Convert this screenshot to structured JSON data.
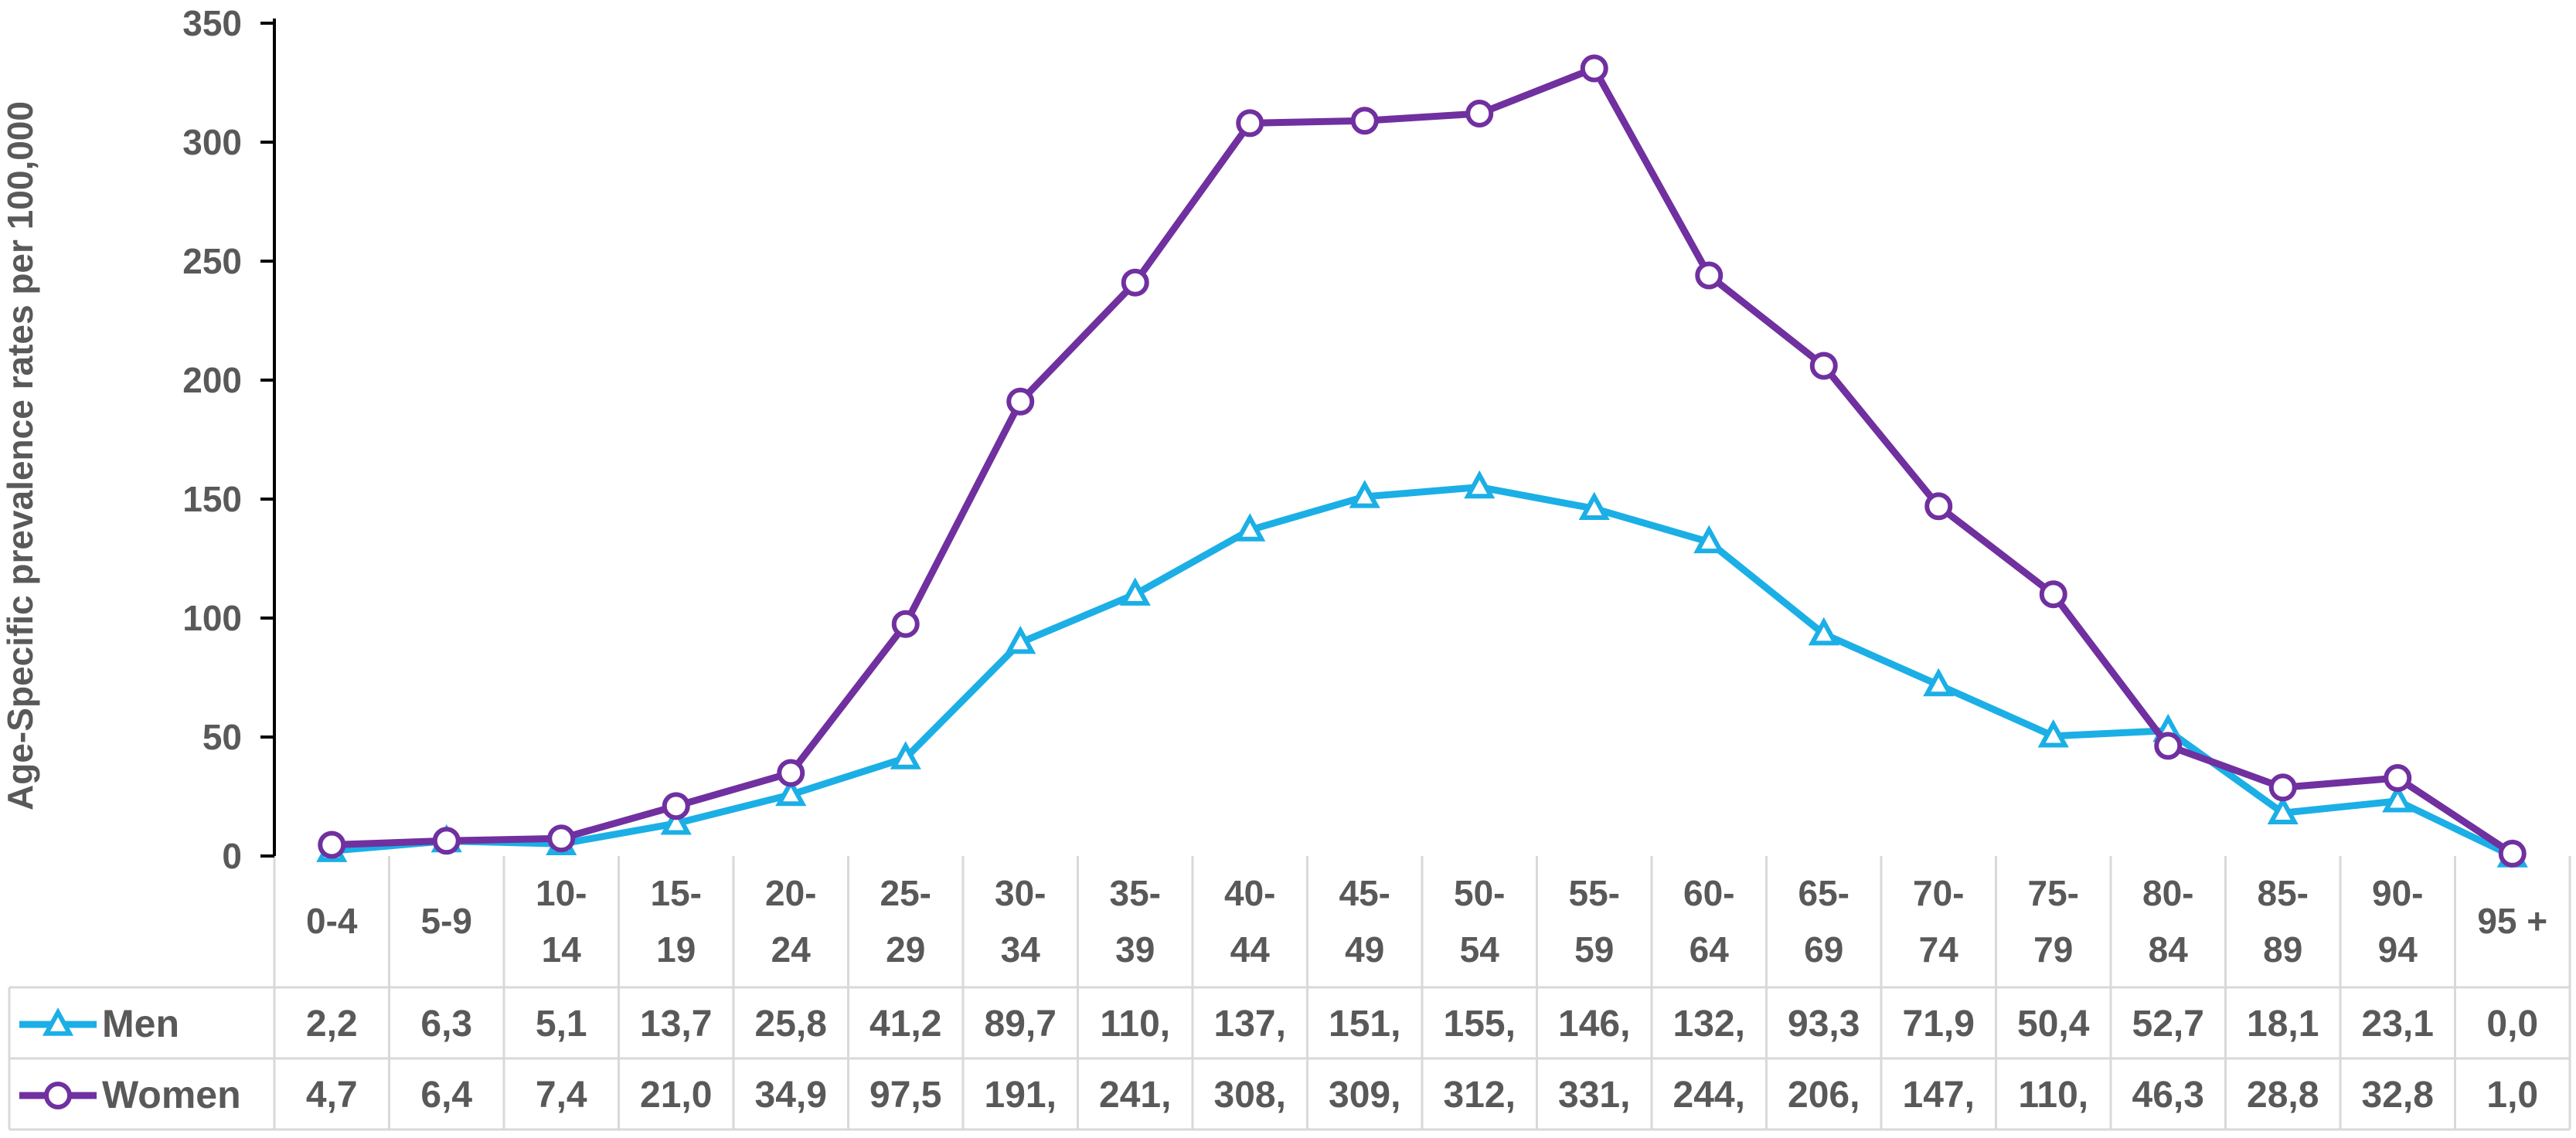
{
  "chart_data": {
    "type": "line",
    "ylabel": "Age-Specific prevalence rates per 100,000",
    "xlabel": "",
    "ylim": [
      0,
      350
    ],
    "yticks": [
      "0",
      "50",
      "100",
      "150",
      "200",
      "250",
      "300",
      "350"
    ],
    "grid": false,
    "legend_placement": "data-table-left",
    "categories": [
      {
        "top": "0-4",
        "bottom": ""
      },
      {
        "top": "5-9",
        "bottom": ""
      },
      {
        "top": "10-",
        "bottom": "14"
      },
      {
        "top": "15-",
        "bottom": "19"
      },
      {
        "top": "20-",
        "bottom": "24"
      },
      {
        "top": "25-",
        "bottom": "29"
      },
      {
        "top": "30-",
        "bottom": "34"
      },
      {
        "top": "35-",
        "bottom": "39"
      },
      {
        "top": "40-",
        "bottom": "44"
      },
      {
        "top": "45-",
        "bottom": "49"
      },
      {
        "top": "50-",
        "bottom": "54"
      },
      {
        "top": "55-",
        "bottom": "59"
      },
      {
        "top": "60-",
        "bottom": "64"
      },
      {
        "top": "65-",
        "bottom": "69"
      },
      {
        "top": "70-",
        "bottom": "74"
      },
      {
        "top": "75-",
        "bottom": "79"
      },
      {
        "top": "80-",
        "bottom": "84"
      },
      {
        "top": "85-",
        "bottom": "89"
      },
      {
        "top": "90-",
        "bottom": "94"
      },
      {
        "top": "95 +",
        "bottom": ""
      }
    ],
    "series": [
      {
        "name": "Men",
        "color": "#1BAFE6",
        "marker": "triangle",
        "values": [
          2.2,
          6.3,
          5.1,
          13.7,
          25.8,
          41.2,
          89.7,
          110,
          137,
          151,
          155,
          146,
          132,
          93.3,
          71.9,
          50.4,
          52.7,
          18.1,
          23.1,
          0.0
        ],
        "table_labels": [
          "2,2",
          "6,3",
          "5,1",
          "13,7",
          "25,8",
          "41,2",
          "89,7",
          "110,",
          "137,",
          "151,",
          "155,",
          "146,",
          "132,",
          "93,3",
          "71,9",
          "50,4",
          "52,7",
          "18,1",
          "23,1",
          "0,0"
        ]
      },
      {
        "name": "Women",
        "color": "#7030A0",
        "marker": "circle",
        "values": [
          4.7,
          6.4,
          7.4,
          21.0,
          34.9,
          97.5,
          191,
          241,
          308,
          309,
          312,
          331,
          244,
          206,
          147,
          110,
          46.3,
          28.8,
          32.8,
          1.0
        ],
        "table_labels": [
          "4,7",
          "6,4",
          "7,4",
          "21,0",
          "34,9",
          "97,5",
          "191,",
          "241,",
          "308,",
          "309,",
          "312,",
          "331,",
          "244,",
          "206,",
          "147,",
          "110,",
          "46,3",
          "28,8",
          "32,8",
          "1,0"
        ]
      }
    ]
  }
}
